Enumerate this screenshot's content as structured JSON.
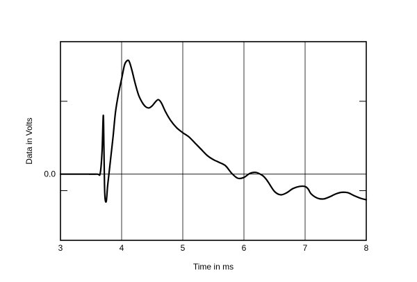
{
  "chart_data": {
    "type": "line",
    "xlabel": "Time in ms",
    "ylabel": "Data in Volts",
    "xlim": [
      3,
      8
    ],
    "ylim": [
      -1.6,
      3.2
    ],
    "xticks": [
      {
        "value": 3,
        "label": "3"
      },
      {
        "value": 4,
        "label": "4"
      },
      {
        "value": 5,
        "label": "5"
      },
      {
        "value": 6,
        "label": "6"
      },
      {
        "value": 7,
        "label": "7"
      },
      {
        "value": 8,
        "label": "8"
      }
    ],
    "yticks": [
      {
        "value": 0.0,
        "label": "0.0"
      }
    ],
    "grid": {
      "x": [
        4,
        5,
        6,
        7
      ],
      "y": [
        0.0
      ]
    },
    "series": [
      {
        "color": "#000000",
        "x": [
          3.0,
          3.2,
          3.4,
          3.6,
          3.65,
          3.68,
          3.7,
          3.71,
          3.72,
          3.73,
          3.75,
          3.77,
          3.8,
          3.83,
          3.86,
          3.9,
          3.95,
          4.0,
          4.05,
          4.1,
          4.13,
          4.17,
          4.22,
          4.28,
          4.35,
          4.4,
          4.45,
          4.5,
          4.55,
          4.6,
          4.65,
          4.72,
          4.8,
          4.9,
          5.0,
          5.1,
          5.2,
          5.3,
          5.4,
          5.5,
          5.6,
          5.7,
          5.8,
          5.9,
          6.0,
          6.1,
          6.2,
          6.3,
          6.35,
          6.4,
          6.5,
          6.6,
          6.7,
          6.8,
          6.9,
          7.0,
          7.05,
          7.1,
          7.2,
          7.3,
          7.4,
          7.5,
          7.6,
          7.7,
          7.8,
          7.9,
          8.0
        ],
        "values": [
          0.0,
          0.0,
          0.0,
          0.0,
          0.02,
          0.55,
          1.42,
          0.7,
          -0.25,
          -0.6,
          -0.65,
          -0.3,
          0.1,
          0.5,
          0.9,
          1.5,
          1.95,
          2.3,
          2.65,
          2.75,
          2.7,
          2.5,
          2.2,
          1.9,
          1.7,
          1.62,
          1.6,
          1.65,
          1.74,
          1.8,
          1.72,
          1.5,
          1.3,
          1.12,
          1.0,
          0.9,
          0.75,
          0.6,
          0.45,
          0.35,
          0.28,
          0.2,
          0.02,
          -0.1,
          -0.08,
          0.02,
          0.04,
          -0.03,
          -0.1,
          -0.2,
          -0.42,
          -0.5,
          -0.45,
          -0.35,
          -0.3,
          -0.3,
          -0.36,
          -0.48,
          -0.58,
          -0.6,
          -0.55,
          -0.48,
          -0.44,
          -0.45,
          -0.52,
          -0.58,
          -0.62
        ]
      }
    ]
  }
}
